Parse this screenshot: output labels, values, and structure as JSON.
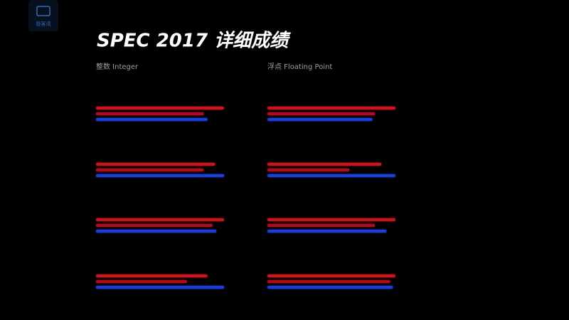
{
  "header": {
    "logo": "极客湾",
    "title": "SPEC 2017 详细成绩"
  },
  "chart_data": [
    {
      "type": "hbar",
      "title": "整数 Integer",
      "categories": [
        null,
        null,
        null,
        null
      ],
      "xlim": [
        0,
        100
      ],
      "series": [
        {
          "color": "#c8121c",
          "values": [
            100,
            93,
            100,
            87
          ]
        },
        {
          "color": "#b0101a",
          "values": [
            84,
            84,
            91,
            71
          ]
        },
        {
          "color": "#1c3fd6",
          "values": [
            87,
            100,
            94,
            100
          ]
        }
      ]
    },
    {
      "type": "hbar",
      "title": "浮点 Floating Point",
      "categories": [
        null,
        null,
        null,
        null
      ],
      "xlim": [
        0,
        100
      ],
      "series": [
        {
          "color": "#c8121c",
          "values": [
            100,
            89,
            100,
            100
          ]
        },
        {
          "color": "#b0101a",
          "values": [
            84,
            64,
            84,
            96
          ]
        },
        {
          "color": "#1c3fd6",
          "values": [
            82,
            100,
            93,
            98
          ]
        }
      ]
    }
  ]
}
